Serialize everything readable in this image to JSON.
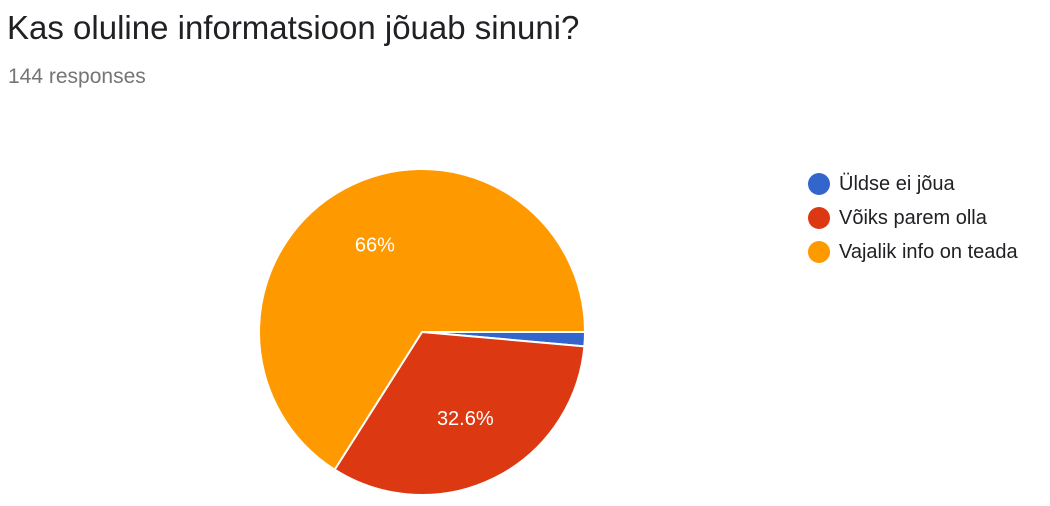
{
  "header": {
    "title": "Kas oluline informatsioon jõuab sinuni?",
    "responses": "144 responses"
  },
  "chart_data": {
    "type": "pie",
    "title": "Kas oluline informatsioon jõuab sinuni?",
    "categories": [
      "Üldse ei jõua",
      "Võiks parem olla",
      "Vajalik info on teada"
    ],
    "values": [
      1.4,
      32.6,
      66
    ],
    "data_labels": [
      "",
      "32.6%",
      "66%"
    ],
    "colors": [
      "#3366cc",
      "#dc3912",
      "#ff9900"
    ],
    "legend_position": "right"
  }
}
